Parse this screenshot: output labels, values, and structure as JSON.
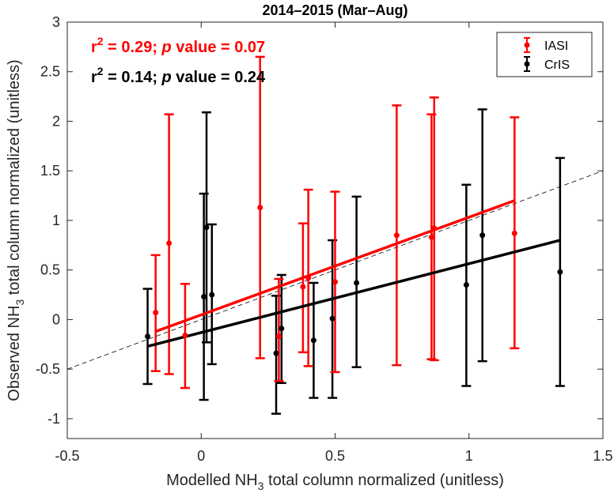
{
  "chart_data": {
    "type": "scatter",
    "title": "2014–2015 (Mar–Aug)",
    "xlabel": {
      "prefix": "Modelled NH",
      "sub": "3",
      "suffix": " total column normalized (unitless)"
    },
    "ylabel": {
      "prefix": "Observed NH",
      "sub": "3",
      "suffix": " total column normalized (unitless)"
    },
    "xlim": [
      -0.5,
      1.5
    ],
    "ylim": [
      -1.2,
      3
    ],
    "xticks": [
      -0.5,
      0,
      0.5,
      1,
      1.5
    ],
    "xtick_labels": [
      "-0.5",
      "0",
      "0.5",
      "1",
      "1.5"
    ],
    "yticks": [
      -1,
      -0.5,
      0,
      0.5,
      1,
      1.5,
      2,
      2.5,
      3
    ],
    "ytick_labels": [
      "-1",
      "-0.5",
      "0",
      "0.5",
      "1",
      "1.5",
      "2",
      "2.5",
      "3"
    ],
    "grid": false,
    "legend_position": "top-right",
    "one_to_one_line": {
      "x": [
        -0.5,
        1.5
      ],
      "y": [
        -0.5,
        1.5
      ]
    },
    "series": [
      {
        "name": "IASI",
        "color": "#ff0000",
        "points": [
          {
            "x": -0.17,
            "y": 0.07,
            "lo": -0.52,
            "hi": 0.65
          },
          {
            "x": -0.12,
            "y": 0.77,
            "lo": -0.55,
            "hi": 2.07
          },
          {
            "x": -0.06,
            "y": -0.16,
            "lo": -0.69,
            "hi": 0.36
          },
          {
            "x": 0.22,
            "y": 1.13,
            "lo": -0.39,
            "hi": 2.65
          },
          {
            "x": 0.29,
            "y": -0.17,
            "lo": -0.62,
            "hi": 0.41
          },
          {
            "x": 0.38,
            "y": 0.33,
            "lo": -0.33,
            "hi": 0.97
          },
          {
            "x": 0.4,
            "y": 0.42,
            "lo": -0.47,
            "hi": 1.31
          },
          {
            "x": 0.5,
            "y": 0.38,
            "lo": -0.53,
            "hi": 1.29
          },
          {
            "x": 0.73,
            "y": 0.85,
            "lo": -0.46,
            "hi": 2.16
          },
          {
            "x": 0.86,
            "y": 0.83,
            "lo": -0.4,
            "hi": 2.07
          },
          {
            "x": 0.87,
            "y": 0.92,
            "lo": -0.41,
            "hi": 2.24
          },
          {
            "x": 1.17,
            "y": 0.87,
            "lo": -0.29,
            "hi": 2.04
          }
        ],
        "fit": {
          "x": [
            -0.17,
            1.17
          ],
          "y": [
            -0.12,
            1.2
          ]
        },
        "r2_label": "r",
        "r2_sup": "2",
        "r2_value": " = 0.29; ",
        "p_label": "p",
        "p_value": " value = 0.07"
      },
      {
        "name": "CrIS",
        "color": "#000000",
        "points": [
          {
            "x": -0.2,
            "y": -0.17,
            "lo": -0.65,
            "hi": 0.31
          },
          {
            "x": 0.01,
            "y": 0.23,
            "lo": -0.81,
            "hi": 1.27
          },
          {
            "x": 0.02,
            "y": 0.93,
            "lo": -0.23,
            "hi": 2.09
          },
          {
            "x": 0.04,
            "y": 0.25,
            "lo": -0.45,
            "hi": 0.96
          },
          {
            "x": 0.28,
            "y": -0.34,
            "lo": -0.95,
            "hi": 0.24
          },
          {
            "x": 0.3,
            "y": -0.09,
            "lo": -0.64,
            "hi": 0.45
          },
          {
            "x": 0.42,
            "y": -0.21,
            "lo": -0.79,
            "hi": 0.37
          },
          {
            "x": 0.49,
            "y": 0.01,
            "lo": -0.79,
            "hi": 0.8
          },
          {
            "x": 0.58,
            "y": 0.37,
            "lo": -0.48,
            "hi": 1.24
          },
          {
            "x": 0.99,
            "y": 0.35,
            "lo": -0.67,
            "hi": 1.36
          },
          {
            "x": 1.05,
            "y": 0.85,
            "lo": -0.42,
            "hi": 2.12
          },
          {
            "x": 1.34,
            "y": 0.48,
            "lo": -0.67,
            "hi": 1.63
          }
        ],
        "fit": {
          "x": [
            -0.2,
            1.34
          ],
          "y": [
            -0.27,
            0.8
          ]
        },
        "r2_label": "r",
        "r2_sup": "2",
        "r2_value": " = 0.14; ",
        "p_label": "p",
        "p_value": " value = 0.24"
      }
    ]
  }
}
